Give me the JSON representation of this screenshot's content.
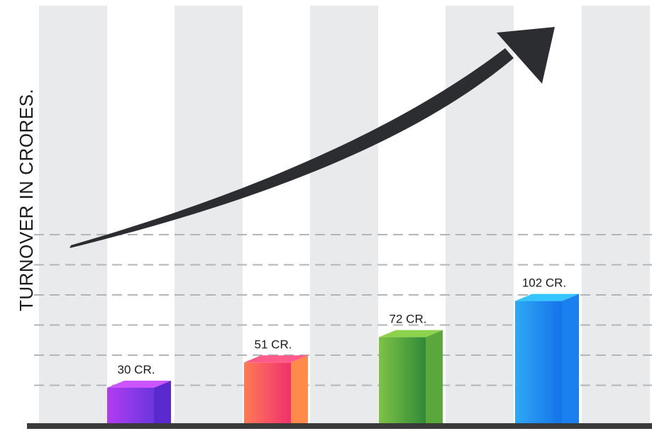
{
  "chart_data": {
    "type": "bar",
    "title": "",
    "xlabel": "",
    "ylabel": "TURNOVER IN CRORES.",
    "categories": [
      "",
      "",
      "",
      ""
    ],
    "values": [
      30,
      51,
      72,
      102
    ],
    "data_labels": [
      "30 CR.",
      "51 CR.",
      "72 CR.",
      "102 CR."
    ],
    "ylim": [
      0,
      150
    ],
    "grid": true,
    "legend": "none",
    "style": "3d-bars-with-trend-arrow",
    "bar_colors": [
      {
        "front": [
          "#b23cf0",
          "#6a36e0"
        ],
        "side": "#5a2ad0",
        "top": "#cc55ff"
      },
      {
        "front": [
          "#ff7a55",
          "#f0306e"
        ],
        "side": "#ff8a4a",
        "top": "#ff5a8a"
      },
      {
        "front": [
          "#7ec246",
          "#2f8a36"
        ],
        "side": "#5aa83c",
        "top": "#8dd24c"
      },
      {
        "front": [
          "#2ea8f5",
          "#1573e8"
        ],
        "side": "#1a80f0",
        "top": "#36c6ff"
      }
    ],
    "colors": {
      "background": "#ffffff",
      "column_band": "#e9eaec",
      "grid_line": "#b3b5b8",
      "baseline": "#3a3a3a",
      "arrow": "#2c2d30"
    }
  }
}
